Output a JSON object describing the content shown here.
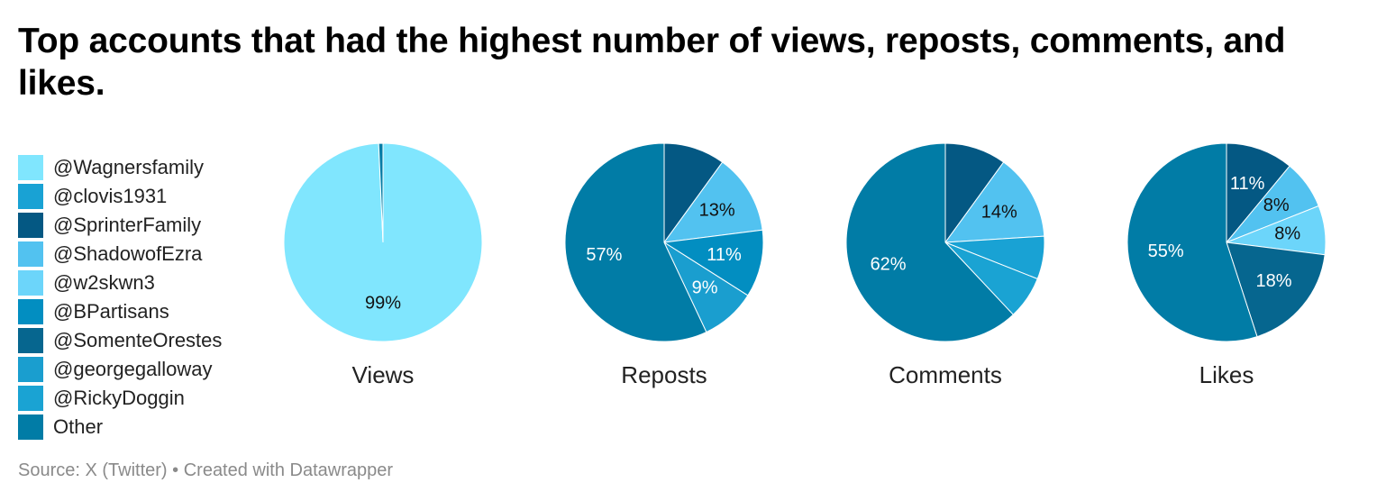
{
  "title": "Top accounts that had the highest number of views, reposts, comments, and likes.",
  "source": "Source: X (Twitter) • Created with Datawrapper",
  "legend": [
    {
      "label": "@Wagnersfamily",
      "color": "#80e6fe"
    },
    {
      "label": "@clovis1931",
      "color": "#19a2d4"
    },
    {
      "label": "@SprinterFamily",
      "color": "#045883"
    },
    {
      "label": "@ShadowofEzra",
      "color": "#52c2f0"
    },
    {
      "label": "@w2skwn3",
      "color": "#6cd5fa"
    },
    {
      "label": "@BPartisans",
      "color": "#028ec1"
    },
    {
      "label": "@SomenteOrestes",
      "color": "#06668f"
    },
    {
      "label": "@georgegalloway",
      "color": "#1a9ecf"
    },
    {
      "label": "@RickyDoggin",
      "color": "#1aa3d3"
    },
    {
      "label": "Other",
      "color": "#017ca6"
    }
  ],
  "chart_data": [
    {
      "type": "pie",
      "title": "Views",
      "slices": [
        {
          "label": "@Wagnersfamily",
          "value": 99.3,
          "text": "99%",
          "color": "#80e6fe"
        },
        {
          "label": "Other",
          "value": 0.7,
          "text": "",
          "color": "#017ca6"
        }
      ]
    },
    {
      "type": "pie",
      "title": "Reposts",
      "slices": [
        {
          "label": "@SprinterFamily",
          "value": 10,
          "text": "",
          "color": "#045883"
        },
        {
          "label": "@ShadowofEzra",
          "value": 13,
          "text": "13%",
          "color": "#52c2f0"
        },
        {
          "label": "@BPartisans",
          "value": 11,
          "text": "11%",
          "color": "#028ec1"
        },
        {
          "label": "@georgegalloway",
          "value": 9,
          "text": "9%",
          "color": "#1a9ecf"
        },
        {
          "label": "Other",
          "value": 57,
          "text": "57%",
          "color": "#017ca6"
        }
      ]
    },
    {
      "type": "pie",
      "title": "Comments",
      "slices": [
        {
          "label": "@SprinterFamily",
          "value": 10,
          "text": "",
          "color": "#045883"
        },
        {
          "label": "@ShadowofEzra",
          "value": 14,
          "text": "14%",
          "color": "#52c2f0"
        },
        {
          "label": "@clovis1931",
          "value": 7,
          "text": "",
          "color": "#19a2d4"
        },
        {
          "label": "@RickyDoggin",
          "value": 7,
          "text": "",
          "color": "#1aa3d3"
        },
        {
          "label": "Other",
          "value": 62,
          "text": "62%",
          "color": "#017ca6"
        }
      ]
    },
    {
      "type": "pie",
      "title": "Likes",
      "slices": [
        {
          "label": "@SprinterFamily",
          "value": 11,
          "text": "11%",
          "color": "#045883"
        },
        {
          "label": "@ShadowofEzra",
          "value": 8,
          "text": "8%",
          "color": "#52c2f0"
        },
        {
          "label": "@w2skwn3",
          "value": 8,
          "text": "8%",
          "color": "#6cd5fa"
        },
        {
          "label": "@SomenteOrestes",
          "value": 18,
          "text": "18%",
          "color": "#06668f"
        },
        {
          "label": "Other",
          "value": 55,
          "text": "55%",
          "color": "#017ca6"
        }
      ]
    }
  ]
}
